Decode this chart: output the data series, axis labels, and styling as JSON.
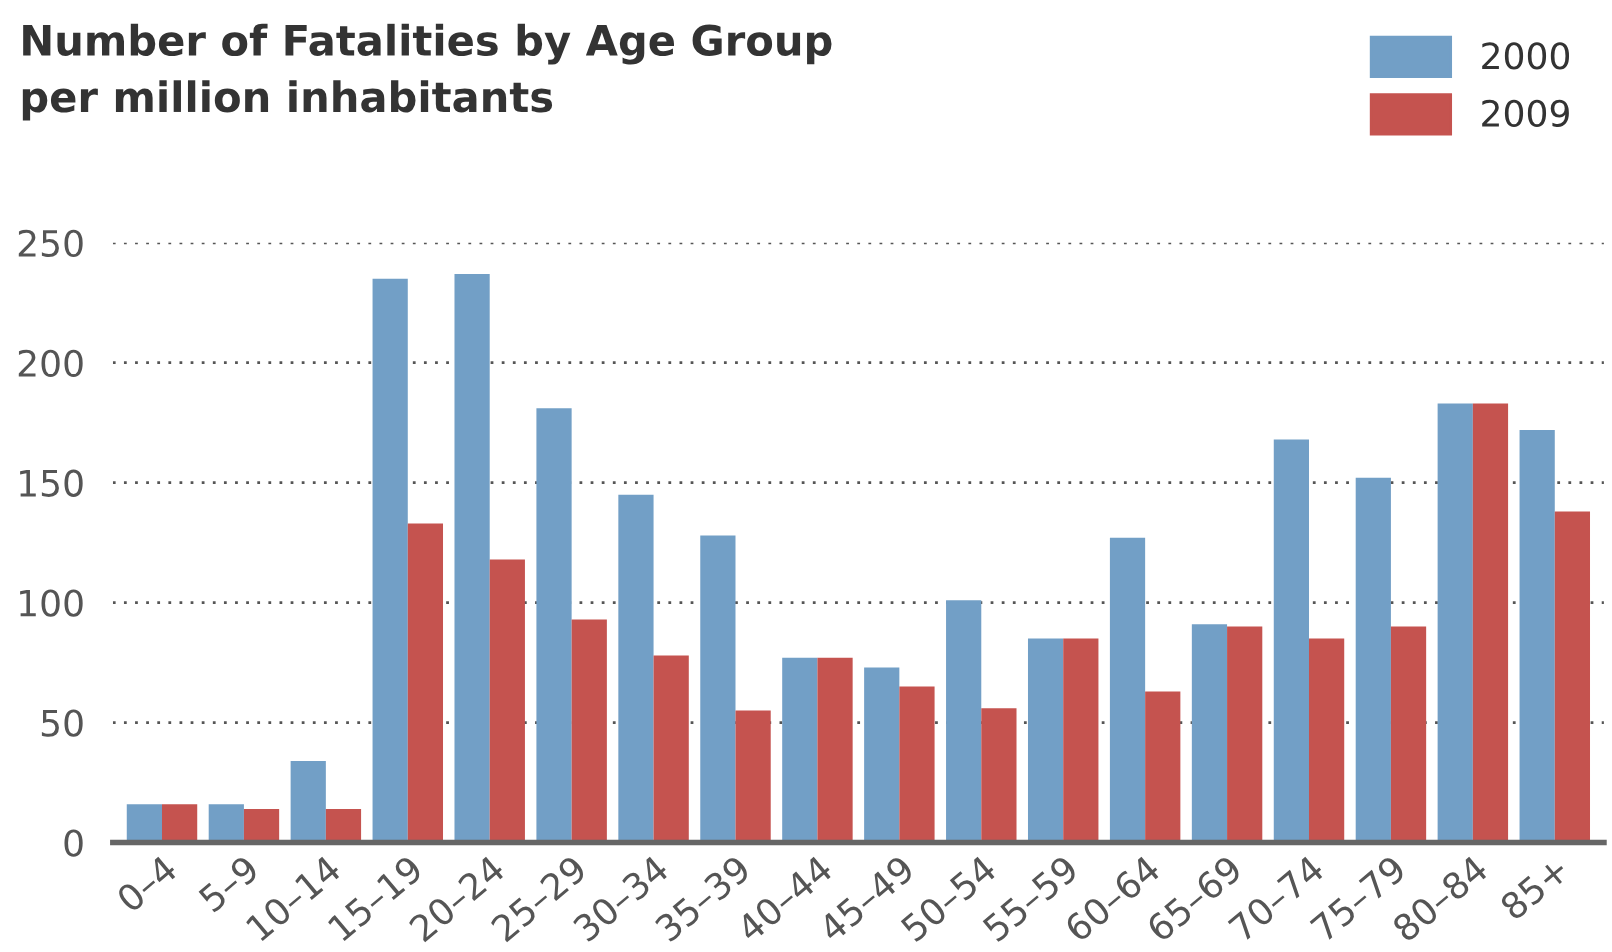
{
  "chart_data": {
    "type": "bar",
    "title": "Number of Fatalities by Age Group\nper million inhabitants",
    "categories": [
      "0–4",
      "5–9",
      "10–14",
      "15–19",
      "20–24",
      "25–29",
      "30–34",
      "35–39",
      "40–44",
      "45–49",
      "50–54",
      "55–59",
      "60–64",
      "65–69",
      "70–74",
      "75–79",
      "80–84",
      "85+"
    ],
    "series": [
      {
        "name": "2000",
        "color": "#729fc6",
        "values": [
          16,
          16,
          34,
          235,
          237,
          181,
          145,
          128,
          77,
          73,
          101,
          85,
          127,
          91,
          168,
          152,
          183,
          172
        ]
      },
      {
        "name": "2009",
        "color": "#c5534f",
        "values": [
          16,
          14,
          14,
          133,
          118,
          93,
          78,
          55,
          77,
          65,
          56,
          85,
          63,
          90,
          85,
          90,
          183,
          138
        ]
      }
    ],
    "ylim": [
      0,
      250
    ],
    "yticks": [
      0,
      50,
      100,
      150,
      200,
      250
    ],
    "grid": "y",
    "legend": "top right"
  }
}
